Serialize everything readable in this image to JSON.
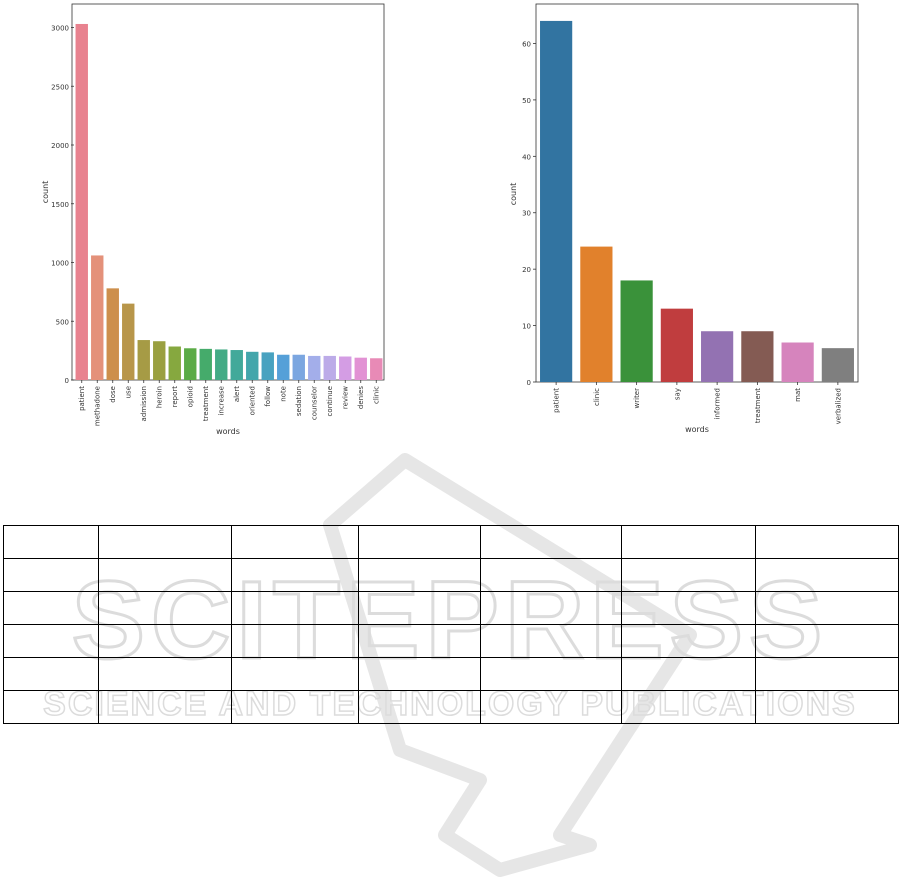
{
  "chart_data": [
    {
      "type": "bar",
      "xlabel": "words",
      "ylabel": "count",
      "ylim": [
        0,
        3200
      ],
      "yticks": [
        0,
        500,
        1000,
        1500,
        2000,
        2500,
        3000
      ],
      "grid": false,
      "categories": [
        "patient",
        "methadone",
        "dose",
        "use",
        "admission",
        "heroin",
        "report",
        "opioid",
        "treatment",
        "increase",
        "alert",
        "oriented",
        "follow",
        "note",
        "sedation",
        "counselor",
        "continue",
        "review",
        "denies",
        "clinic"
      ],
      "values": [
        3030,
        1060,
        780,
        650,
        340,
        330,
        285,
        270,
        265,
        260,
        255,
        240,
        235,
        215,
        215,
        205,
        205,
        200,
        190,
        185
      ],
      "colors": [
        "#e8828f",
        "#e4917a",
        "#cd8f4c",
        "#b8964a",
        "#a69b45",
        "#9aa040",
        "#86a83f",
        "#5bab46",
        "#45ab6b",
        "#43ab85",
        "#42a99a",
        "#43a6ab",
        "#48a2c0",
        "#55a0d8",
        "#7ba6e0",
        "#a3aeea",
        "#bcabe8",
        "#d49de4",
        "#e292d4",
        "#e88ab6"
      ]
    },
    {
      "type": "bar",
      "xlabel": "words",
      "ylabel": "count",
      "ylim": [
        0,
        67
      ],
      "yticks": [
        0,
        10,
        20,
        30,
        40,
        50,
        60
      ],
      "grid": false,
      "categories": [
        "patient",
        "clinic",
        "writer",
        "say",
        "informed",
        "treatment",
        "mat",
        "verbalized"
      ],
      "values": [
        64,
        24,
        18,
        13,
        9,
        9,
        7,
        6
      ],
      "colors": [
        "#3274a1",
        "#e1812c",
        "#3a923a",
        "#c03d3e",
        "#9372b2",
        "#845b53",
        "#d684bd",
        "#7f7f7f"
      ]
    }
  ],
  "watermark": {
    "line1": "SCITEPRESS",
    "line2": "SCIENCE AND TECHNOLOGY PUBLICATIONS",
    "color": "#d2d2d2"
  },
  "table": {
    "rows": 6,
    "columns": 7,
    "column_widths_note": ""
  }
}
